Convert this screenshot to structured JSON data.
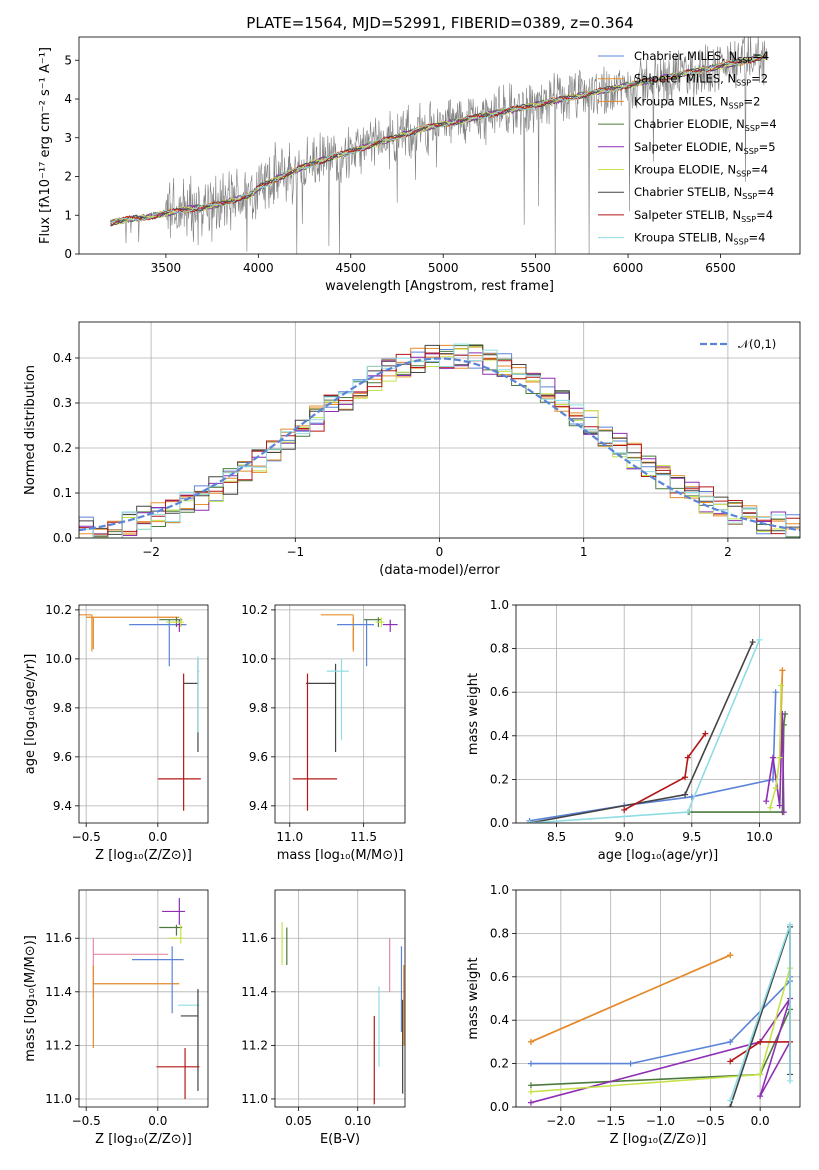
{
  "figure": {
    "title": "PLATE=1564, MJD=52991, FIBERID=0389, z=0.364"
  },
  "colors": {
    "Chabrier MILES": "#5b84d9",
    "Salpeter MILES": "#e8912e",
    "Kroupa MILES": "#e58a2a",
    "Chabrier ELODIE": "#4c7a3e",
    "Salpeter ELODIE": "#8e2fb3",
    "Kroupa ELODIE": "#c6e24a",
    "Chabrier STELIB": "#444444",
    "Salpeter STELIB": "#b41818",
    "Kroupa STELIB": "#8fdde3",
    "pink": "#e88aa6",
    "gauss": "#5b84d9",
    "data": "#7f7f7f"
  },
  "chart_data": [
    {
      "id": "spectrum",
      "type": "line",
      "title": "PLATE=1564, MJD=52991, FIBERID=0389, z=0.364",
      "xlabel": "wavelength [Angstrom, rest frame]",
      "ylabel": "Flux [fλ10⁻¹⁷ erg cm⁻² s⁻¹ A⁻¹]",
      "xlim": [
        3030,
        6930
      ],
      "ylim": [
        0,
        5.6
      ],
      "xticks": [
        3500,
        4000,
        4500,
        5000,
        5500,
        6000,
        6500
      ],
      "yticks": [
        0,
        1,
        2,
        3,
        4,
        5
      ],
      "grid": false,
      "legend_position": "right",
      "legend": [
        {
          "main": "Chabrier MILES, N",
          "sub": "SSP",
          "tail": "=4",
          "series": "Chabrier MILES"
        },
        {
          "main": "Salpeter MILES, N",
          "sub": "SSP",
          "tail": "=2",
          "series": "Salpeter MILES"
        },
        {
          "main": "Kroupa MILES, N",
          "sub": "SSP",
          "tail": "=2",
          "series": "Kroupa MILES"
        },
        {
          "main": "Chabrier ELODIE, N",
          "sub": "SSP",
          "tail": "=4",
          "series": "Chabrier ELODIE"
        },
        {
          "main": "Salpeter ELODIE, N",
          "sub": "SSP",
          "tail": "=5",
          "series": "Salpeter ELODIE"
        },
        {
          "main": "Kroupa ELODIE, N",
          "sub": "SSP",
          "tail": "=4",
          "series": "Kroupa ELODIE"
        },
        {
          "main": "Chabrier STELIB, N",
          "sub": "SSP",
          "tail": "=4",
          "series": "Chabrier STELIB"
        },
        {
          "main": "Salpeter STELIB, N",
          "sub": "SSP",
          "tail": "=4",
          "series": "Salpeter STELIB"
        },
        {
          "main": "Kroupa STELIB, N",
          "sub": "SSP",
          "tail": "=4",
          "series": "Kroupa STELIB"
        }
      ],
      "continuum": [
        [
          3200,
          0.8
        ],
        [
          3300,
          0.9
        ],
        [
          3400,
          0.95
        ],
        [
          3500,
          1.05
        ],
        [
          3600,
          1.15
        ],
        [
          3700,
          1.2
        ],
        [
          3800,
          1.3
        ],
        [
          3900,
          1.45
        ],
        [
          3950,
          1.5
        ],
        [
          4000,
          1.7
        ],
        [
          4100,
          1.95
        ],
        [
          4200,
          2.15
        ],
        [
          4300,
          2.35
        ],
        [
          4400,
          2.5
        ],
        [
          4500,
          2.65
        ],
        [
          4600,
          2.8
        ],
        [
          4700,
          2.95
        ],
        [
          4800,
          3.1
        ],
        [
          4900,
          3.25
        ],
        [
          5000,
          3.35
        ],
        [
          5100,
          3.45
        ],
        [
          5200,
          3.55
        ],
        [
          5300,
          3.65
        ],
        [
          5400,
          3.75
        ],
        [
          5500,
          3.85
        ],
        [
          5600,
          3.95
        ],
        [
          5700,
          4.05
        ],
        [
          5800,
          4.15
        ],
        [
          5900,
          4.25
        ],
        [
          6000,
          4.35
        ],
        [
          6100,
          4.45
        ],
        [
          6200,
          4.55
        ],
        [
          6300,
          4.65
        ],
        [
          6400,
          4.75
        ],
        [
          6500,
          4.85
        ],
        [
          6600,
          4.95
        ],
        [
          6700,
          5.05
        ],
        [
          6750,
          5.1
        ]
      ]
    },
    {
      "id": "residuals",
      "type": "line",
      "xlabel": "(data-model)/error",
      "ylabel": "Normed distribution",
      "xlim": [
        -2.5,
        2.5
      ],
      "ylim": [
        0,
        0.48
      ],
      "xticks": [
        -2,
        -1,
        0,
        1,
        2
      ],
      "yticks": [
        0.0,
        0.1,
        0.2,
        0.3,
        0.4
      ],
      "grid": true,
      "legend_position": "upper right",
      "gauss_label": "𝒩(0,1)",
      "gauss_mu": 0,
      "gauss_sigma": 1
    },
    {
      "id": "age-vs-Z",
      "type": "scatter",
      "xlabel": "Z [log₁₀(Z/Z⊙)]",
      "ylabel": "age  [log₁₀(age/yr)]",
      "xlim": [
        -0.55,
        0.35
      ],
      "ylim": [
        9.33,
        10.22
      ],
      "xticks": [
        -0.5,
        0.0
      ],
      "yticks": [
        9.4,
        9.6,
        9.8,
        10.0,
        10.2
      ],
      "grid": true,
      "points": [
        {
          "s": "Salpeter MILES",
          "x": -0.46,
          "xe": [
            0.56,
            0.0
          ],
          "y": 10.18,
          "ye": [
            0.15,
            0.0
          ]
        },
        {
          "s": "Kroupa MILES",
          "x": -0.45,
          "xe": [
            0.05,
            0.6
          ],
          "y": 10.17,
          "ye": [
            0.13,
            0.0
          ]
        },
        {
          "s": "Chabrier MILES",
          "x": 0.08,
          "xe": [
            0.28,
            0.12
          ],
          "y": 10.14,
          "ye": [
            0.17,
            0.02
          ]
        },
        {
          "s": "Chabrier ELODIE",
          "x": 0.13,
          "xe": [
            0.12,
            0.04
          ],
          "y": 10.16,
          "ye": [
            0.03,
            0.01
          ]
        },
        {
          "s": "Salpeter ELODIE",
          "x": 0.15,
          "xe": [
            0.02,
            0.02
          ],
          "y": 10.14,
          "ye": [
            0.03,
            0.02
          ]
        },
        {
          "s": "Kroupa ELODIE",
          "x": 0.16,
          "xe": [
            0.1,
            0.02
          ],
          "y": 10.15,
          "ye": [
            0.02,
            0.02
          ]
        },
        {
          "s": "Chabrier STELIB",
          "x": 0.28,
          "xe": [
            0.1,
            0.0
          ],
          "y": 9.9,
          "ye": [
            0.28,
            0.1
          ]
        },
        {
          "s": "Salpeter STELIB",
          "x": 0.18,
          "xe": [
            0.18,
            0.12
          ],
          "y": 9.51,
          "ye": [
            0.13,
            0.43
          ]
        },
        {
          "s": "Kroupa STELIB",
          "x": 0.28,
          "xe": [
            0.0,
            0.01
          ],
          "y": 9.95,
          "ye": [
            0.25,
            0.06
          ]
        }
      ]
    },
    {
      "id": "age-vs-mass",
      "type": "scatter",
      "xlabel": "mass [log₁₀(M/M⊙)]",
      "ylabel": "",
      "xlim": [
        10.9,
        11.78
      ],
      "ylim": [
        9.33,
        10.22
      ],
      "xticks": [
        11.0,
        11.5
      ],
      "yticks": [
        9.4,
        9.6,
        9.8,
        10.0,
        10.2
      ],
      "grid": true,
      "points": [
        {
          "s": "Salpeter MILES",
          "x": 11.43,
          "xe": [
            0.22,
            0.0
          ],
          "y": 10.18,
          "ye": [
            0.15,
            0.0
          ]
        },
        {
          "s": "Kroupa MILES",
          "x": 11.43,
          "xe": [
            0.0,
            0.0
          ],
          "y": 10.17,
          "ye": [
            0.13,
            0.0
          ]
        },
        {
          "s": "Chabrier MILES",
          "x": 11.52,
          "xe": [
            0.2,
            0.05
          ],
          "y": 10.14,
          "ye": [
            0.17,
            0.02
          ]
        },
        {
          "s": "Chabrier ELODIE",
          "x": 11.6,
          "xe": [
            0.1,
            0.02
          ],
          "y": 10.16,
          "ye": [
            0.03,
            0.01
          ]
        },
        {
          "s": "Salpeter ELODIE",
          "x": 11.68,
          "xe": [
            0.05,
            0.05
          ],
          "y": 10.14,
          "ye": [
            0.03,
            0.02
          ]
        },
        {
          "s": "Kroupa ELODIE",
          "x": 11.62,
          "xe": [
            0.04,
            0.02
          ],
          "y": 10.15,
          "ye": [
            0.02,
            0.02
          ]
        },
        {
          "s": "Chabrier STELIB",
          "x": 11.31,
          "xe": [
            0.2,
            0.0
          ],
          "y": 9.9,
          "ye": [
            0.28,
            0.08
          ]
        },
        {
          "s": "Salpeter STELIB",
          "x": 11.12,
          "xe": [
            0.1,
            0.2
          ],
          "y": 9.51,
          "ye": [
            0.13,
            0.43
          ]
        },
        {
          "s": "Kroupa STELIB",
          "x": 11.35,
          "xe": [
            0.1,
            0.05
          ],
          "y": 9.95,
          "ye": [
            0.28,
            0.05
          ]
        }
      ]
    },
    {
      "id": "weight-vs-age",
      "type": "line",
      "xlabel": "age  [log₁₀(age/yr)]",
      "ylabel": "mass weight",
      "xlim": [
        8.2,
        10.3
      ],
      "ylim": [
        0,
        1.0
      ],
      "xticks": [
        8.5,
        9.0,
        9.5,
        10.0
      ],
      "yticks": [
        0.0,
        0.2,
        0.4,
        0.6,
        0.8,
        1.0
      ],
      "grid": true,
      "series": [
        {
          "s": "Chabrier MILES",
          "x": [
            8.3,
            9.0,
            9.5,
            10.1,
            10.12
          ],
          "y": [
            0.01,
            0.08,
            0.12,
            0.2,
            0.6
          ]
        },
        {
          "s": "Salpeter MILES",
          "x": [
            10.15,
            10.17
          ],
          "y": [
            0.3,
            0.7
          ]
        },
        {
          "s": "Kroupa MILES",
          "x": [
            10.15,
            10.17
          ],
          "y": [
            0.3,
            0.7
          ]
        },
        {
          "s": "Chabrier ELODIE",
          "x": [
            9.48,
            10.17,
            10.18,
            10.19
          ],
          "y": [
            0.05,
            0.05,
            0.45,
            0.5
          ]
        },
        {
          "s": "Salpeter ELODIE",
          "x": [
            10.05,
            10.1,
            10.15,
            10.17,
            10.18
          ],
          "y": [
            0.1,
            0.3,
            0.08,
            0.5,
            0.05
          ]
        },
        {
          "s": "Kroupa ELODIE",
          "x": [
            10.08,
            10.12,
            10.15,
            10.16
          ],
          "y": [
            0.07,
            0.16,
            0.3,
            0.63
          ]
        },
        {
          "s": "Chabrier STELIB",
          "x": [
            8.3,
            9.45,
            9.95
          ],
          "y": [
            0.0,
            0.13,
            0.83
          ]
        },
        {
          "s": "Salpeter STELIB",
          "x": [
            9.0,
            9.45,
            9.47,
            9.6
          ],
          "y": [
            0.06,
            0.21,
            0.3,
            0.41
          ]
        },
        {
          "s": "Kroupa STELIB",
          "x": [
            8.3,
            9.47,
            10.0
          ],
          "y": [
            0.0,
            0.05,
            0.84
          ]
        }
      ]
    },
    {
      "id": "mass-vs-Z",
      "type": "scatter",
      "xlabel": "Z [log₁₀(Z/Z⊙)]",
      "ylabel": "mass [log₁₀(M/M⊙)]",
      "xlim": [
        -0.55,
        0.35
      ],
      "ylim": [
        10.97,
        11.78
      ],
      "xticks": [
        -0.5,
        0.0
      ],
      "yticks": [
        11.0,
        11.2,
        11.4,
        11.6
      ],
      "grid": true,
      "points": [
        {
          "s": "pink",
          "x": -0.45,
          "xe": [
            0.0,
            0.52
          ],
          "y": 11.54,
          "ye": [
            0.16,
            0.06
          ]
        },
        {
          "s": "Kroupa MILES",
          "x": -0.45,
          "xe": [
            0.0,
            0.6
          ],
          "y": 11.43,
          "ye": [
            0.24,
            0.07
          ]
        },
        {
          "s": "Chabrier MILES",
          "x": 0.1,
          "xe": [
            0.28,
            0.08
          ],
          "y": 11.52,
          "ye": [
            0.2,
            0.05
          ]
        },
        {
          "s": "Salpeter ELODIE",
          "x": 0.15,
          "xe": [
            0.12,
            0.04
          ],
          "y": 11.7,
          "ye": [
            0.05,
            0.05
          ]
        },
        {
          "s": "Chabrier ELODIE",
          "x": 0.13,
          "xe": [
            0.12,
            0.04
          ],
          "y": 11.64,
          "ye": [
            0.03,
            0.01
          ]
        },
        {
          "s": "Kroupa ELODIE",
          "x": 0.16,
          "xe": [
            0.08,
            0.02
          ],
          "y": 11.6,
          "ye": [
            0.02,
            0.05
          ]
        },
        {
          "s": "Kroupa STELIB",
          "x": 0.28,
          "xe": [
            0.14,
            0.01
          ],
          "y": 11.35,
          "ye": [
            0.24,
            0.06
          ]
        },
        {
          "s": "Chabrier STELIB",
          "x": 0.28,
          "xe": [
            0.12,
            0.0
          ],
          "y": 11.31,
          "ye": [
            0.28,
            0.1
          ]
        },
        {
          "s": "Salpeter STELIB",
          "x": 0.19,
          "xe": [
            0.2,
            0.1
          ],
          "y": 11.12,
          "ye": [
            0.12,
            0.07
          ]
        }
      ]
    },
    {
      "id": "mass-vs-ebv",
      "type": "scatter",
      "xlabel": "E(B-V)",
      "ylabel": "",
      "xlim": [
        0.03,
        0.14
      ],
      "ylim": [
        10.97,
        11.78
      ],
      "xticks": [
        0.05,
        0.1
      ],
      "xtick_labels": [
        "0.05",
        "0.10"
      ],
      "yticks": [
        11.0,
        11.2,
        11.4,
        11.6
      ],
      "grid": true,
      "points": [
        {
          "s": "Kroupa ELODIE",
          "x": 0.036,
          "y0": 11.5,
          "y1": 11.66
        },
        {
          "s": "Chabrier ELODIE",
          "x": 0.04,
          "y0": 11.5,
          "y1": 11.64
        },
        {
          "s": "Salpeter STELIB",
          "x": 0.114,
          "y0": 10.98,
          "y1": 11.31
        },
        {
          "s": "Kroupa STELIB",
          "x": 0.118,
          "y0": 11.12,
          "y1": 11.42
        },
        {
          "s": "pink",
          "x": 0.127,
          "y0": 11.4,
          "y1": 11.6
        },
        {
          "s": "Chabrier MILES",
          "x": 0.137,
          "y0": 11.25,
          "y1": 11.57
        },
        {
          "s": "Chabrier STELIB",
          "x": 0.138,
          "y0": 11.02,
          "y1": 11.37
        },
        {
          "s": "Kroupa MILES",
          "x": 0.139,
          "y0": 11.2,
          "y1": 11.5
        }
      ]
    },
    {
      "id": "weight-vs-Z",
      "type": "line",
      "xlabel": "Z [log₁₀(Z/Z⊙)]",
      "ylabel": "mass weight",
      "xlim": [
        -2.45,
        0.4
      ],
      "ylim": [
        0,
        1.0
      ],
      "xticks": [
        -2.0,
        -1.5,
        -1.0,
        -0.5,
        0.0
      ],
      "yticks": [
        0.0,
        0.2,
        0.4,
        0.6,
        0.8,
        1.0
      ],
      "grid": true,
      "series": [
        {
          "s": "Chabrier MILES",
          "x": [
            -2.3,
            -1.3,
            -0.3,
            0.3,
            0.3
          ],
          "y": [
            0.2,
            0.2,
            0.3,
            0.58,
            0.6
          ]
        },
        {
          "s": "Salpeter MILES",
          "x": [
            -2.3,
            -0.3
          ],
          "y": [
            0.3,
            0.7
          ]
        },
        {
          "s": "Kroupa MILES",
          "x": [
            -2.3,
            -0.3
          ],
          "y": [
            0.3,
            0.7
          ]
        },
        {
          "s": "Chabrier ELODIE",
          "x": [
            -2.3,
            0.0,
            0.3
          ],
          "y": [
            0.1,
            0.15,
            0.45
          ]
        },
        {
          "s": "Salpeter ELODIE",
          "x": [
            -2.3,
            0.0,
            0.3,
            0.0,
            0.3
          ],
          "y": [
            0.02,
            0.3,
            0.5,
            0.05,
            0.3
          ]
        },
        {
          "s": "Kroupa ELODIE",
          "x": [
            -2.3,
            0.0,
            0.3
          ],
          "y": [
            0.07,
            0.15,
            0.64
          ]
        },
        {
          "s": "Chabrier STELIB",
          "x": [
            -0.3,
            0.3,
            0.3
          ],
          "y": [
            0.0,
            0.83,
            0.15
          ]
        },
        {
          "s": "Salpeter STELIB",
          "x": [
            -0.3,
            0.0,
            0.3
          ],
          "y": [
            0.21,
            0.3,
            0.3
          ]
        },
        {
          "s": "Kroupa STELIB",
          "x": [
            -0.3,
            0.3,
            0.3
          ],
          "y": [
            0.03,
            0.84,
            0.12
          ]
        }
      ]
    }
  ]
}
